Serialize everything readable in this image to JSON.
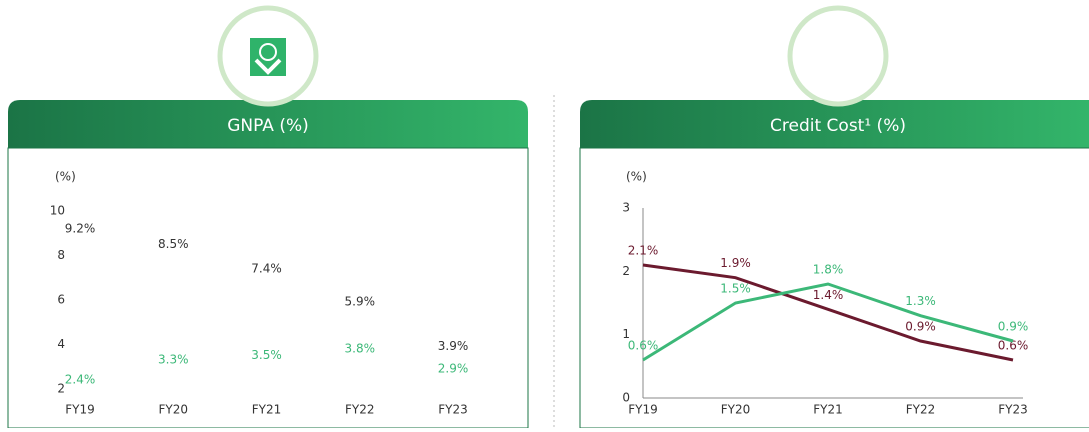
{
  "chart_data": [
    {
      "type": "text",
      "title": "GNPA (%)",
      "y_label": "(%)",
      "categories": [
        "FY19",
        "FY20",
        "FY21",
        "FY22",
        "FY23"
      ],
      "series": [
        {
          "color": "#333333",
          "values": [
            9.2,
            8.5,
            7.4,
            5.9,
            3.9
          ],
          "value_labels": [
            "9.2%",
            "8.5%",
            "7.4%",
            "5.9%",
            "3.9%"
          ]
        },
        {
          "color": "#3cb878",
          "values": [
            2.4,
            3.3,
            3.5,
            3.8,
            2.9
          ],
          "value_labels": [
            "2.4%",
            "3.3%",
            "3.5%",
            "3.8%",
            "2.9%"
          ]
        }
      ],
      "ylim": [
        2,
        10
      ],
      "yticks": [
        2,
        4,
        6,
        8,
        10
      ]
    },
    {
      "type": "line",
      "title": "Credit Cost¹ (%)",
      "y_label": "(%)",
      "categories": [
        "FY19",
        "FY20",
        "FY21",
        "FY22",
        "FY23"
      ],
      "series": [
        {
          "color": "#6b1a2e",
          "values": [
            2.1,
            1.9,
            1.4,
            0.9,
            0.6
          ],
          "value_labels": [
            "2.1%",
            "1.9%",
            "1.4%",
            "0.9%",
            "0.6%"
          ]
        },
        {
          "color": "#3cb878",
          "values": [
            0.6,
            1.5,
            1.8,
            1.3,
            0.9
          ],
          "value_labels": [
            "0.6%",
            "1.5%",
            "1.8%",
            "1.3%",
            "0.9%"
          ]
        }
      ],
      "ylim": [
        0,
        3
      ],
      "yticks": [
        0,
        1,
        2,
        3
      ]
    }
  ]
}
